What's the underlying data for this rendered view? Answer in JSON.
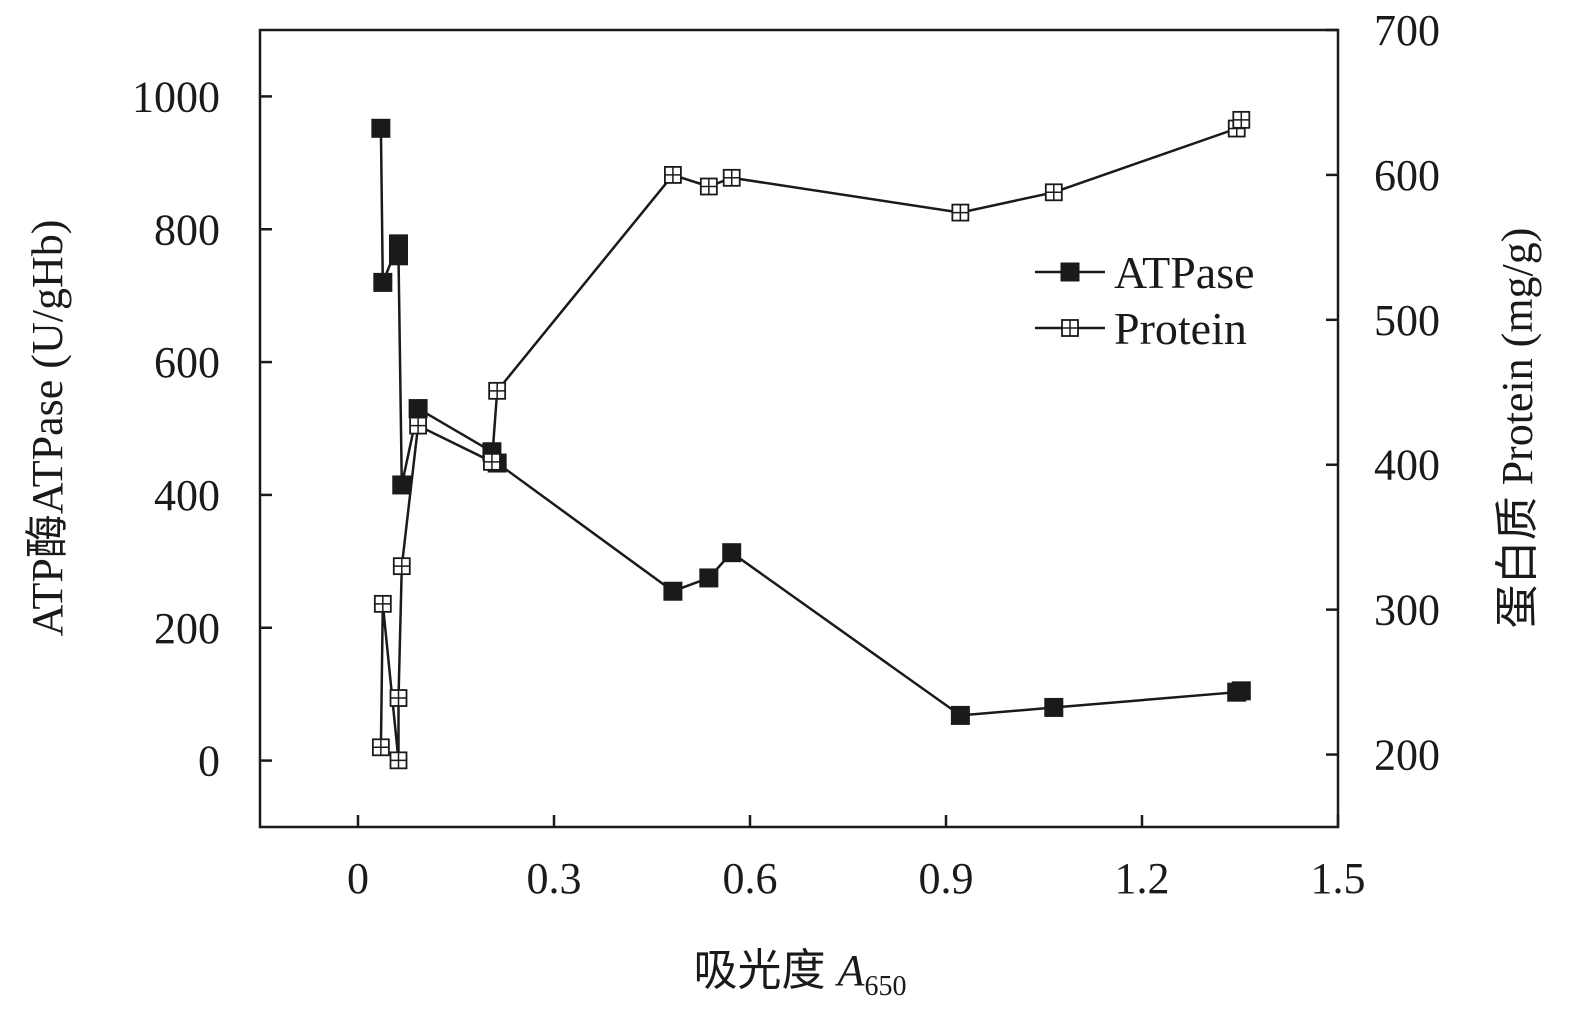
{
  "chart_data": {
    "type": "scatter",
    "xlabel": "吸光度",
    "xlabel_symbol": "A",
    "xlabel_subscript": "650",
    "ylabel_left": "ATP酶ATPase (U/gHb)",
    "ylabel_right": "蛋白质 Protein (mg/g)",
    "xlim": [
      -0.15,
      1.5
    ],
    "ylim_left": [
      -100,
      1100
    ],
    "ylim_right": [
      150,
      700
    ],
    "x_ticks": [
      "0",
      "0.3",
      "0.6",
      "0.9",
      "1.2",
      "1.5"
    ],
    "y_left_ticks": [
      "0",
      "200",
      "400",
      "600",
      "800",
      "1000"
    ],
    "y_right_ticks": [
      "200",
      "300",
      "400",
      "500",
      "600",
      "700"
    ],
    "legend_position": "upper-right",
    "series": [
      {
        "name": "ATPase",
        "axis": "left",
        "marker": "filled-square",
        "points": [
          {
            "x": 0.035,
            "y": 952
          },
          {
            "x": 0.038,
            "y": 720
          },
          {
            "x": 0.062,
            "y": 778
          },
          {
            "x": 0.062,
            "y": 760
          },
          {
            "x": 0.067,
            "y": 415
          },
          {
            "x": 0.092,
            "y": 530
          },
          {
            "x": 0.205,
            "y": 465
          },
          {
            "x": 0.213,
            "y": 448
          },
          {
            "x": 0.482,
            "y": 255
          },
          {
            "x": 0.537,
            "y": 275
          },
          {
            "x": 0.572,
            "y": 313
          },
          {
            "x": 0.922,
            "y": 68
          },
          {
            "x": 1.065,
            "y": 80
          },
          {
            "x": 1.345,
            "y": 103
          },
          {
            "x": 1.352,
            "y": 105
          }
        ]
      },
      {
        "name": "Protein",
        "axis": "right",
        "marker": "open-square-cross",
        "points": [
          {
            "x": 0.035,
            "y": 205
          },
          {
            "x": 0.038,
            "y": 304
          },
          {
            "x": 0.062,
            "y": 196
          },
          {
            "x": 0.062,
            "y": 239
          },
          {
            "x": 0.067,
            "y": 330
          },
          {
            "x": 0.092,
            "y": 427
          },
          {
            "x": 0.205,
            "y": 402
          },
          {
            "x": 0.213,
            "y": 451
          },
          {
            "x": 0.482,
            "y": 600
          },
          {
            "x": 0.537,
            "y": 592
          },
          {
            "x": 0.572,
            "y": 598
          },
          {
            "x": 0.922,
            "y": 574
          },
          {
            "x": 1.065,
            "y": 588
          },
          {
            "x": 1.345,
            "y": 632
          },
          {
            "x": 1.352,
            "y": 638
          }
        ]
      }
    ]
  }
}
